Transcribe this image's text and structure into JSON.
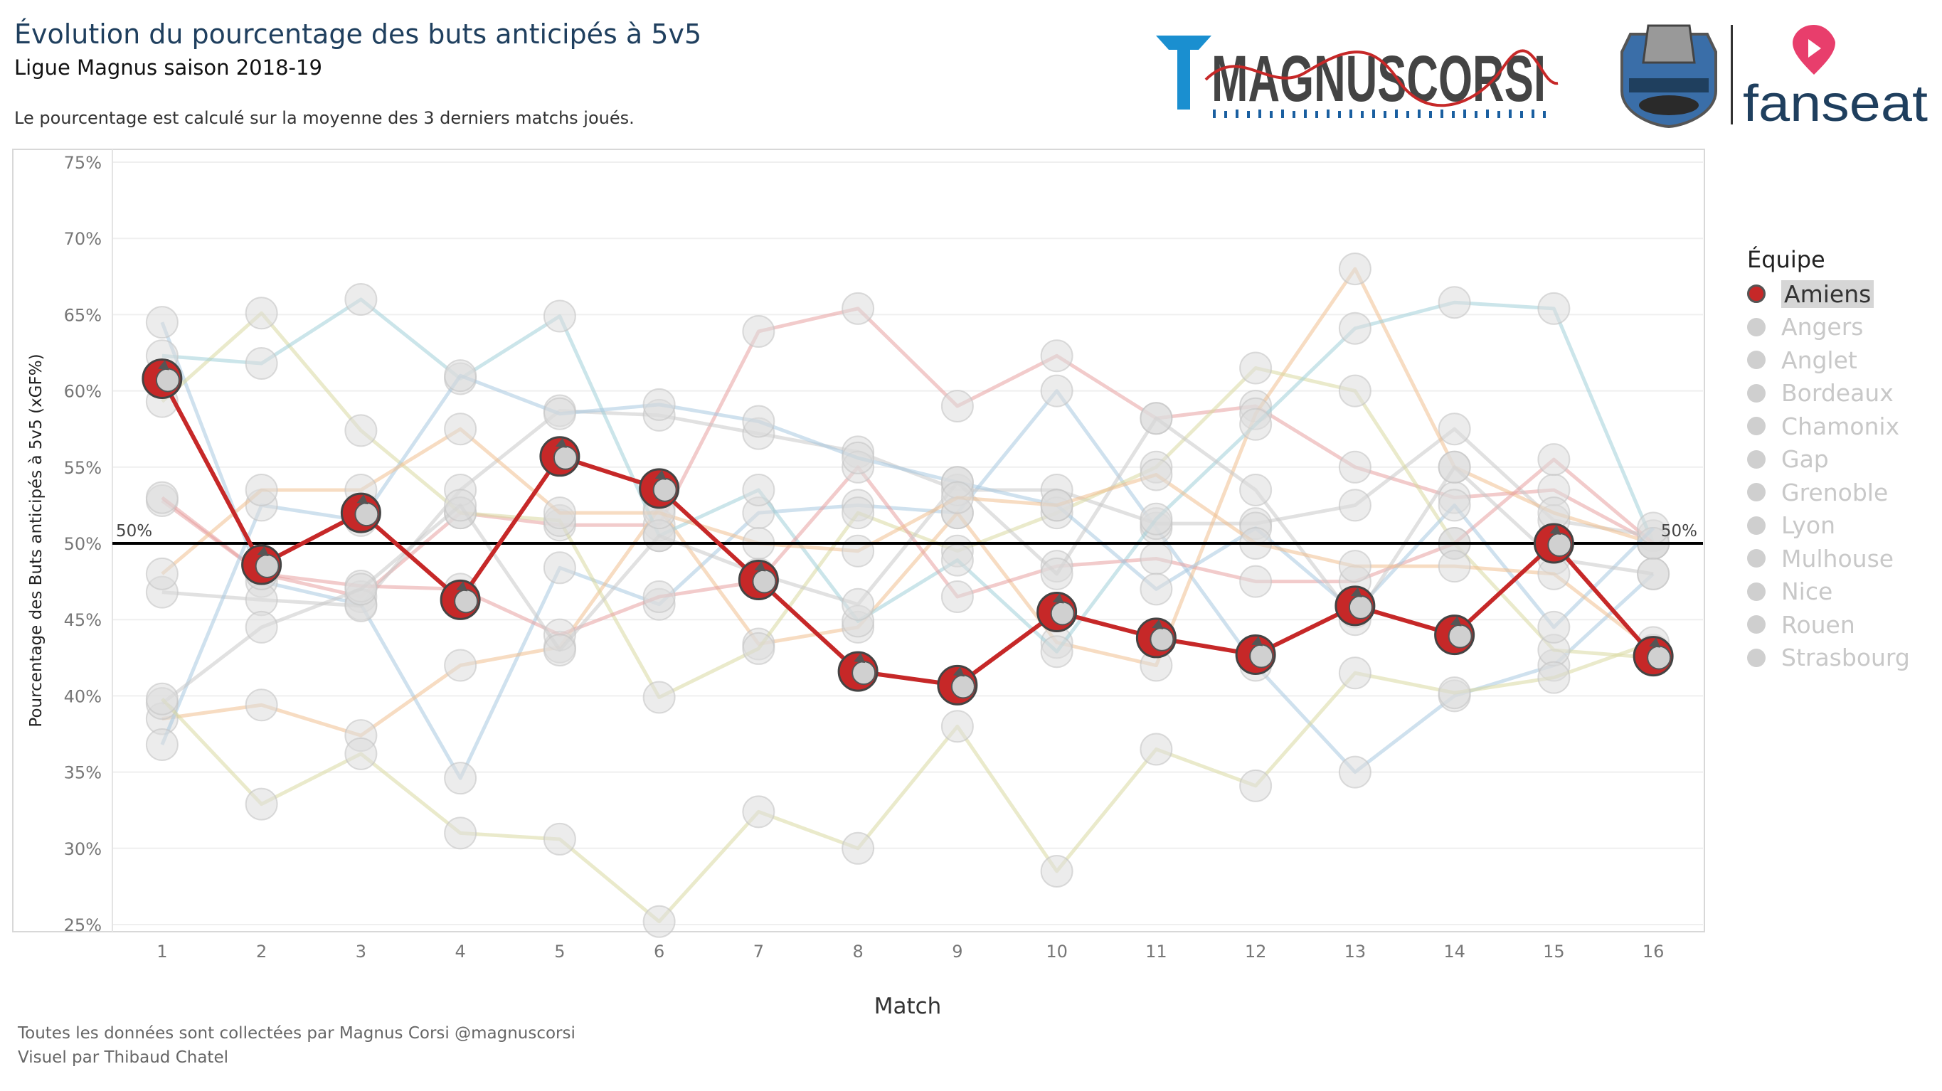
{
  "title": "Évolution du pourcentage des buts anticipés à 5v5",
  "subtitle": "Ligue Magnus saison 2018-19",
  "note": "Le pourcentage est calculé sur la moyenne des 3 derniers matchs joués.",
  "footer": {
    "line1": "Toutes les données sont collectées par Magnus Corsi @magnuscorsi",
    "line2": "Visuel par Thibaud Chatel"
  },
  "logos": {
    "magnuscorsi": "MAGNUSCORSI",
    "fanseat": "fanseat",
    "ligue_magnus": "ligue-magnus-logo"
  },
  "legend": {
    "title": "Équipe",
    "items": [
      "Amiens",
      "Angers",
      "Anglet",
      "Bordeaux",
      "Chamonix",
      "Gap",
      "Grenoble",
      "Lyon",
      "Mulhouse",
      "Nice",
      "Rouen",
      "Strasbourg"
    ],
    "active": "Amiens"
  },
  "colors": {
    "highlight": "#c62828",
    "reference_line": "#000000",
    "muted_lines": [
      "#e8a0a0",
      "#a8c8e0",
      "#c8c8c8",
      "#f0c090",
      "#d8d8a0",
      "#a0d0d8"
    ]
  },
  "chart_data": {
    "type": "line",
    "xlabel": "Match",
    "ylabel": "Pourcentage des Buts anticipés à 5v5 (xGF%)",
    "x": [
      1,
      2,
      3,
      4,
      5,
      6,
      7,
      8,
      9,
      10,
      11,
      12,
      13,
      14,
      15,
      16
    ],
    "ylim": [
      25,
      75
    ],
    "yticks": [
      "25%",
      "30%",
      "35%",
      "40%",
      "45%",
      "50%",
      "55%",
      "60%",
      "65%",
      "70%",
      "75%"
    ],
    "ytick_values": [
      25,
      30,
      35,
      40,
      45,
      50,
      55,
      60,
      65,
      70,
      75
    ],
    "reference_line": {
      "value": 50,
      "label_left": "50%",
      "label_right": "50%"
    },
    "grid": true,
    "highlighted_series": "Amiens",
    "series": [
      {
        "name": "Amiens",
        "values": [
          60.8,
          48.6,
          52.0,
          46.3,
          55.7,
          53.6,
          47.6,
          41.6,
          40.7,
          45.5,
          43.8,
          42.7,
          45.9,
          44.0,
          50.0,
          42.6
        ]
      },
      {
        "name": "Angers",
        "values": [
          52.8,
          48.0,
          46.5,
          52.0,
          51.2,
          51.2,
          63.9,
          65.4,
          59.0,
          62.3,
          58.2,
          59.0,
          55.0,
          53.0,
          53.5,
          50.0
        ]
      },
      {
        "name": "Anglet",
        "values": [
          64.5,
          47.5,
          46.0,
          34.6,
          48.4,
          46.0,
          52.0,
          52.5,
          52.0,
          60.0,
          51.0,
          42.0,
          35.0,
          40.0,
          42.0,
          48.0
        ]
      },
      {
        "name": "Bordeaux",
        "values": [
          46.8,
          46.3,
          45.9,
          53.5,
          58.7,
          58.4,
          57.2,
          56.0,
          53.5,
          53.5,
          51.3,
          51.3,
          52.5,
          57.5,
          51.5,
          50.5
        ]
      },
      {
        "name": "Chamonix",
        "values": [
          38.5,
          39.4,
          37.4,
          42.0,
          43.2,
          52.3,
          43.4,
          44.5,
          52.0,
          43.5,
          42.0,
          58.5,
          68.0,
          55.0,
          52.0,
          50.0
        ]
      },
      {
        "name": "Gap",
        "values": [
          59.3,
          65.1,
          57.4,
          52.0,
          51.5,
          39.9,
          43.1,
          52.0,
          49.5,
          52.0,
          55.0,
          61.5,
          60.0,
          50.0,
          43.0,
          42.5
        ]
      },
      {
        "name": "Grenoble",
        "values": [
          62.3,
          61.8,
          66.0,
          60.8,
          64.9,
          50.5,
          53.5,
          44.9,
          48.9,
          42.9,
          51.6,
          57.8,
          64.1,
          65.8,
          65.4,
          50.0
        ]
      },
      {
        "name": "Lyon",
        "values": [
          53.0,
          48.0,
          47.2,
          47.0,
          44.0,
          46.5,
          47.5,
          55.0,
          46.5,
          48.5,
          49.0,
          47.5,
          47.5,
          50.0,
          55.5,
          50.0
        ]
      },
      {
        "name": "Mulhouse",
        "values": [
          36.8,
          52.5,
          51.5,
          61.0,
          58.5,
          59.1,
          58.0,
          55.6,
          54.0,
          52.5,
          47.0,
          51.0,
          45.5,
          52.5,
          44.5,
          51.0
        ]
      },
      {
        "name": "Nice",
        "values": [
          39.5,
          44.5,
          47.0,
          52.5,
          43.0,
          50.5,
          48.0,
          46.0,
          54.0,
          48.0,
          58.2,
          53.5,
          45.0,
          55.0,
          49.0,
          48.0
        ]
      },
      {
        "name": "Rouen",
        "values": [
          48.0,
          53.5,
          53.5,
          57.5,
          52.0,
          52.0,
          50.0,
          49.5,
          53.0,
          52.5,
          54.5,
          50.0,
          48.5,
          48.5,
          48.0,
          43.0
        ]
      },
      {
        "name": "Strasbourg",
        "values": [
          39.8,
          32.9,
          36.2,
          31.0,
          30.6,
          25.2,
          32.4,
          30.0,
          38.0,
          28.5,
          36.5,
          34.1,
          41.5,
          40.2,
          41.2,
          43.5
        ]
      }
    ]
  }
}
